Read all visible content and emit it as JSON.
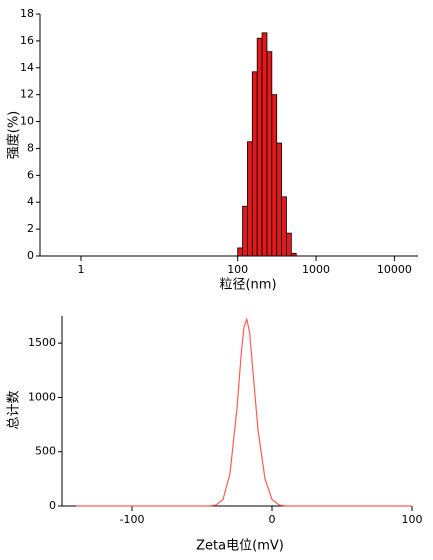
{
  "chart_data": [
    {
      "type": "histogram",
      "xlabel": "粒径(nm)",
      "ylabel": "强度(%)",
      "log_x": true,
      "color": "#e31a1c",
      "bins": [
        100,
        115.4,
        133.2,
        153.7,
        177.4,
        204.7,
        236.3,
        272.7,
        314.7,
        363.2,
        419.2,
        483.8,
        558.3
      ],
      "values": [
        0.6,
        3.7,
        8.5,
        13.7,
        16.2,
        16.6,
        15.2,
        12.0,
        8.4,
        4.4,
        1.7,
        0.2
      ],
      "xlim": [
        0.3,
        20000
      ],
      "xticks": [
        1,
        100,
        1000,
        10000
      ],
      "ylim": [
        0,
        18
      ],
      "yticks": [
        0,
        2,
        4,
        6,
        8,
        10,
        12,
        14,
        16,
        18
      ]
    },
    {
      "type": "line",
      "xlabel": "Zeta电位(mV)",
      "ylabel": "总计数",
      "x": [
        -140,
        -45,
        -40,
        -35,
        -30,
        -25,
        -22,
        -20,
        -18,
        -16,
        -14,
        -10,
        -5,
        0,
        5,
        10,
        100
      ],
      "series": [
        {
          "color": "#ff5a5a",
          "values": [
            0,
            0,
            10,
            60,
            300,
            900,
            1400,
            1650,
            1720,
            1600,
            1300,
            700,
            250,
            60,
            10,
            0,
            0
          ]
        }
      ],
      "xlim": [
        -150,
        100
      ],
      "xticks": [
        -100,
        0,
        100
      ],
      "ylim": [
        0,
        1750
      ],
      "yticks": [
        0,
        500,
        1000,
        1500
      ]
    }
  ]
}
